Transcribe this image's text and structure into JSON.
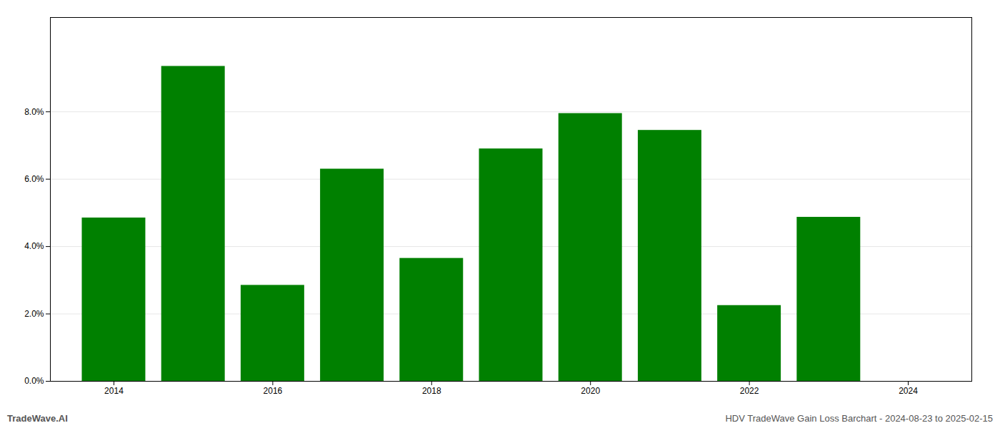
{
  "chart_data": {
    "type": "bar",
    "title": "HDV TradeWave Gain Loss Barchart - 2024-08-23 to 2025-02-15",
    "annotations": [
      "TradeWave.AI"
    ],
    "x": [
      2014,
      2015,
      2016,
      2017,
      2018,
      2019,
      2020,
      2021,
      2022,
      2023
    ],
    "values": [
      0.0485,
      0.0935,
      0.0285,
      0.063,
      0.0365,
      0.069,
      0.0795,
      0.0745,
      0.0225,
      0.0487
    ],
    "color": "#008000",
    "xlim": [
      2013.2,
      2024.8
    ],
    "xticks": [
      2014,
      2016,
      2018,
      2020,
      2022,
      2024
    ],
    "ylim": [
      0,
      0.108
    ],
    "yticks": [
      {
        "value": 0.0,
        "label": "0.0%"
      },
      {
        "value": 0.02,
        "label": "2.0%"
      },
      {
        "value": 0.04,
        "label": "4.0%"
      },
      {
        "value": 0.06,
        "label": "6.0%"
      },
      {
        "value": 0.08,
        "label": "8.0%"
      }
    ],
    "grid": true
  }
}
